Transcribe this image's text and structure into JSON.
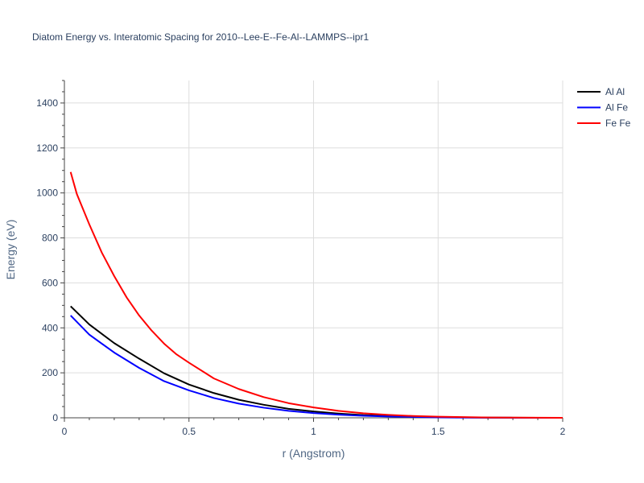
{
  "chart_data": {
    "type": "line",
    "title": "Diatom Energy vs. Interatomic Spacing for 2010--Lee-E--Fe-Al--LAMMPS--ipr1",
    "xlabel": "r (Angstrom)",
    "ylabel": "Energy (eV)",
    "xlim": [
      0,
      2
    ],
    "ylim": [
      0,
      1500
    ],
    "x_ticks": [
      "0",
      "0.5",
      "1",
      "1.5",
      "2"
    ],
    "y_ticks": [
      "0",
      "200",
      "400",
      "600",
      "800",
      "1000",
      "1200",
      "1400"
    ],
    "grid": true,
    "legend_position": "top-right",
    "series": [
      {
        "name": "Al Al",
        "color": "#000000",
        "x": [
          0.025,
          0.1,
          0.2,
          0.3,
          0.4,
          0.5,
          0.6,
          0.7,
          0.8,
          0.9,
          1.0,
          1.1,
          1.2,
          1.3,
          1.4,
          1.5,
          1.6,
          1.7,
          1.8,
          1.9,
          2.0
        ],
        "y": [
          496,
          415,
          332,
          263,
          198,
          148,
          110,
          80,
          58,
          40,
          28,
          19,
          12,
          8,
          5,
          3,
          2,
          1,
          0.5,
          0.2,
          0
        ]
      },
      {
        "name": "Al Fe",
        "color": "#0000ff",
        "x": [
          0.025,
          0.1,
          0.2,
          0.3,
          0.4,
          0.5,
          0.6,
          0.7,
          0.8,
          0.9,
          1.0,
          1.1,
          1.2,
          1.3,
          1.4,
          1.5,
          1.6,
          1.7,
          1.8,
          1.9,
          2.0
        ],
        "y": [
          455,
          370,
          290,
          222,
          163,
          122,
          88,
          63,
          45,
          31,
          21,
          14,
          9,
          6,
          4,
          2,
          1,
          0.5,
          0.2,
          0.1,
          0
        ]
      },
      {
        "name": "Fe Fe",
        "color": "#ff0000",
        "x": [
          0.025,
          0.05,
          0.1,
          0.15,
          0.2,
          0.25,
          0.3,
          0.35,
          0.4,
          0.45,
          0.5,
          0.6,
          0.7,
          0.8,
          0.9,
          1.0,
          1.1,
          1.2,
          1.3,
          1.4,
          1.5,
          1.6,
          1.7,
          1.8,
          1.9,
          2.0
        ],
        "y": [
          1093,
          995,
          860,
          735,
          630,
          535,
          455,
          388,
          330,
          282,
          245,
          175,
          128,
          92,
          65,
          46,
          31,
          20,
          13,
          8,
          5,
          3,
          1.5,
          0.7,
          0.3,
          0
        ]
      }
    ]
  }
}
